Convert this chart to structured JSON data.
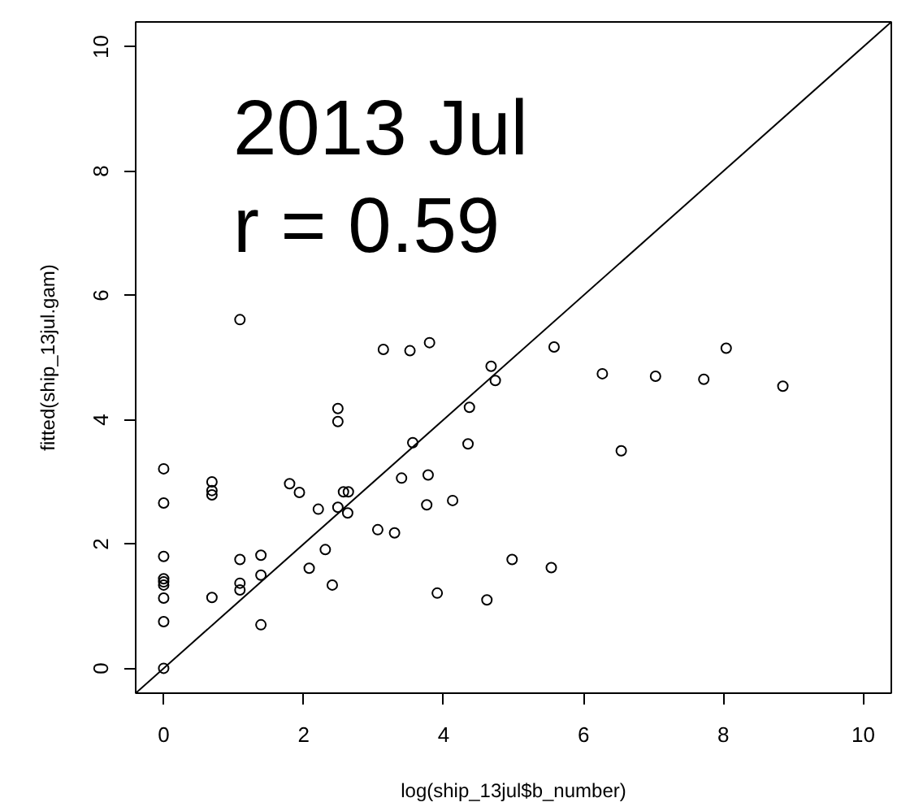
{
  "chart_data": {
    "type": "scatter",
    "xlabel": "log(ship_13jul$b_number)",
    "ylabel": "fitted(ship_13jul.gam)",
    "annotations": [
      "2013 Jul",
      "r = 0.59"
    ],
    "xlim": [
      -0.4,
      10.4
    ],
    "ylim": [
      -0.4,
      10.4
    ],
    "xticks": [
      0,
      2,
      4,
      6,
      8,
      10
    ],
    "yticks": [
      0,
      2,
      4,
      6,
      8,
      10
    ],
    "series": [
      {
        "color": "#000000",
        "marker": "circle",
        "x": [
          1.09,
          3.14,
          2.49,
          2.49,
          0,
          0.69,
          0.69,
          0.69,
          0,
          1.8,
          1.94,
          2.21,
          2.49,
          2.57,
          2.64,
          2.63,
          3.06,
          0,
          0,
          0,
          0,
          0,
          0,
          0,
          0.69,
          1.09,
          1.09,
          1.09,
          1.39,
          1.39,
          1.39,
          2.08,
          2.31,
          2.41,
          3.52,
          3.8,
          5.58,
          4.68,
          4.74,
          6.27,
          4.37,
          3.56,
          4.35,
          6.54,
          3.4,
          3.78,
          3.76,
          4.13,
          3.3,
          4.98,
          5.54,
          3.91,
          4.62,
          8.04,
          7.03,
          7.72,
          8.85
        ],
        "values": [
          5.61,
          5.13,
          4.18,
          3.97,
          3.21,
          3.0,
          2.86,
          2.79,
          2.66,
          2.97,
          2.83,
          2.56,
          2.59,
          2.84,
          2.84,
          2.5,
          2.23,
          1.8,
          1.44,
          1.39,
          1.34,
          1.13,
          0.75,
          0.0,
          1.14,
          1.75,
          1.37,
          1.26,
          1.82,
          1.5,
          0.7,
          1.61,
          1.91,
          1.34,
          5.11,
          5.24,
          5.17,
          4.86,
          4.63,
          4.74,
          4.2,
          3.63,
          3.61,
          3.5,
          3.06,
          3.11,
          2.63,
          2.7,
          2.18,
          1.75,
          1.62,
          1.21,
          1.1,
          5.15,
          4.7,
          4.65,
          4.54
        ]
      },
      {
        "type": "line",
        "color": "#000000",
        "x": [
          -0.4,
          10.4
        ],
        "values": [
          -0.4,
          10.4
        ]
      }
    ]
  }
}
